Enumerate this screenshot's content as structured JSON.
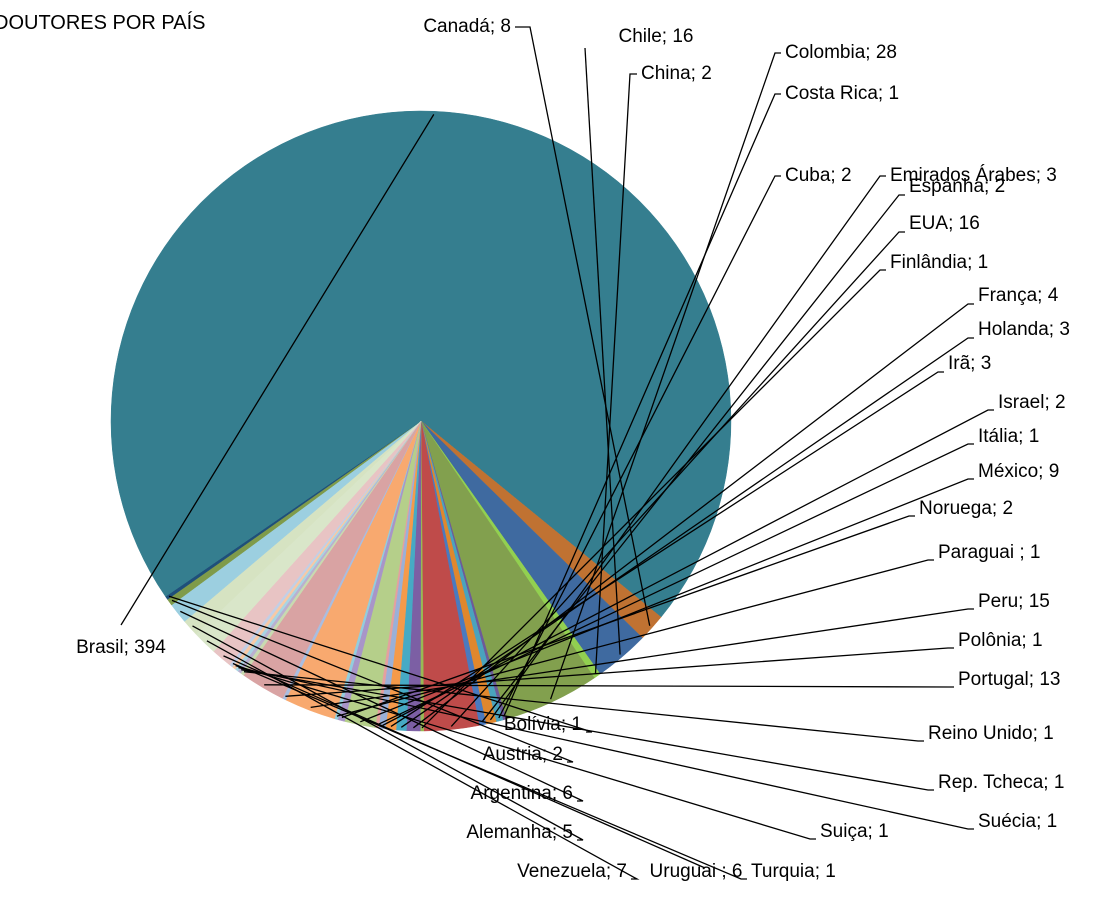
{
  "chart_data": {
    "type": "pie",
    "title": "DOUTORES POR PAÍS",
    "slices": [
      {
        "label": "Alemanha",
        "value": 5,
        "color": "#d6e3c2"
      },
      {
        "label": "Argentina",
        "value": 6,
        "color": "#9ccfe0"
      },
      {
        "label": "Austria",
        "value": 2,
        "color": "#7f9b4a"
      },
      {
        "label": "Bolívia",
        "value": 1,
        "color": "#1f4f7a"
      },
      {
        "label": "Brasil",
        "value": 394,
        "color": "#357e8f"
      },
      {
        "label": "Canadá",
        "value": 8,
        "color": "#c07232"
      },
      {
        "label": "Chile",
        "value": 16,
        "color": "#3f6aa0"
      },
      {
        "label": "China",
        "value": 2,
        "color": "#92d050"
      },
      {
        "label": "Colombia",
        "value": 28,
        "color": "#82a04e"
      },
      {
        "label": "Costa Rica",
        "value": 1,
        "color": "#6d5a99"
      },
      {
        "label": "Cuba",
        "value": 2,
        "color": "#4aa3bd"
      },
      {
        "label": "Emirados Árabes",
        "value": 3,
        "color": "#e0872d"
      },
      {
        "label": "Espanha",
        "value": 2,
        "color": "#4a7abf"
      },
      {
        "label": "EUA",
        "value": 16,
        "color": "#bf4b4a"
      },
      {
        "label": "Finlândia",
        "value": 1,
        "color": "#98b954"
      },
      {
        "label": "França",
        "value": 4,
        "color": "#7c5fa4"
      },
      {
        "label": "Holanda",
        "value": 3,
        "color": "#46aac4"
      },
      {
        "label": "Irã",
        "value": 3,
        "color": "#f59a4a"
      },
      {
        "label": "Israel",
        "value": 2,
        "color": "#9ab0d8"
      },
      {
        "label": "Itália",
        "value": 1,
        "color": "#e4a09f"
      },
      {
        "label": "México",
        "value": 9,
        "color": "#b5cf8a"
      },
      {
        "label": "Noruega",
        "value": 2,
        "color": "#a895c8"
      },
      {
        "label": "Paraguai ",
        "value": 1,
        "color": "#93cddd"
      },
      {
        "label": "Peru",
        "value": 15,
        "color": "#f8a96f"
      },
      {
        "label": "Polônia",
        "value": 1,
        "color": "#a9bde0"
      },
      {
        "label": "Portugal",
        "value": 13,
        "color": "#d9a3a3"
      },
      {
        "label": "Reino Unido",
        "value": 1,
        "color": "#c8dab0"
      },
      {
        "label": "Rep. Tcheca",
        "value": 1,
        "color": "#b9b0d0"
      },
      {
        "label": "Suécia",
        "value": 1,
        "color": "#a8d4e3"
      },
      {
        "label": "Suiça",
        "value": 1,
        "color": "#f7c9a5"
      },
      {
        "label": "Turquia",
        "value": 1,
        "color": "#c2cfe6"
      },
      {
        "label": "Uruguai ",
        "value": 6,
        "color": "#e8c4c4"
      },
      {
        "label": "Venezuela",
        "value": 7,
        "color": "#d9e6c9"
      }
    ]
  }
}
